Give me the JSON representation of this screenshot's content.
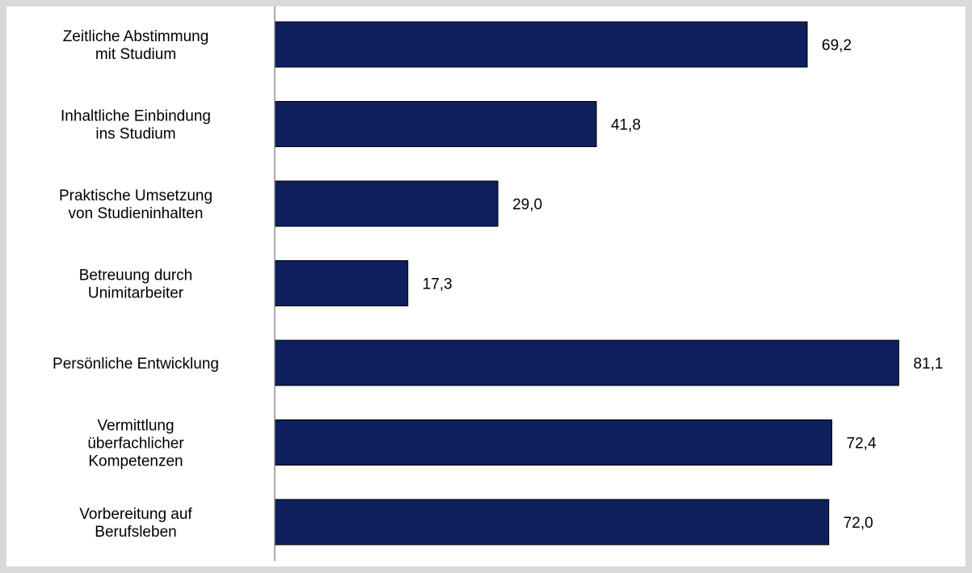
{
  "chart_data": {
    "type": "bar",
    "orientation": "horizontal",
    "title": "",
    "xlabel": "",
    "ylabel": "",
    "categories": [
      [
        "Zeitliche Abstimmung",
        "mit Studium"
      ],
      [
        "Inhaltliche Einbindung",
        "ins Studium"
      ],
      [
        "Praktische Umsetzung",
        "von Studieninhalten"
      ],
      [
        "Betreuung durch",
        "Unimitarbeiter"
      ],
      [
        "Persönliche Entwicklung"
      ],
      [
        "Vermittlung",
        "überfachlicher",
        "Kompetenzen"
      ],
      [
        "Vorbereitung auf",
        "Berufsleben"
      ]
    ],
    "values": [
      69.2,
      41.8,
      29.0,
      17.3,
      81.1,
      72.4,
      72.0
    ],
    "value_labels": [
      "69,2",
      "41,8",
      "29,0",
      "17,3",
      "81,1",
      "72,4",
      "72,0"
    ],
    "xlim": [
      0,
      100
    ],
    "grid": false,
    "legend": "none",
    "colors": {
      "bar": "#0d1f5c",
      "bar_border": "#000000",
      "axis": "#808080",
      "frame": "#d9d9d9"
    }
  }
}
